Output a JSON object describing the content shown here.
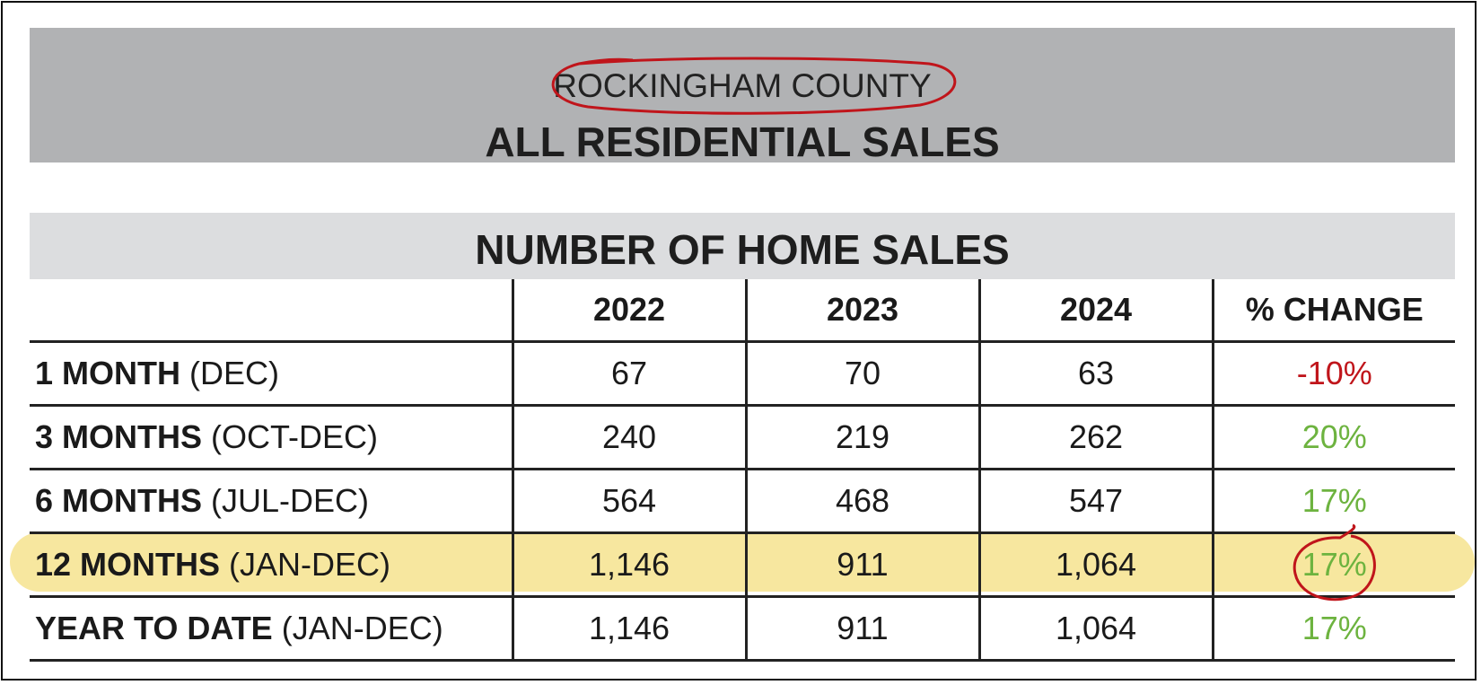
{
  "header": {
    "county": "ROCKINGHAM COUNTY",
    "subtitle": "ALL RESIDENTIAL SALES"
  },
  "table": {
    "title": "NUMBER OF HOME SALES",
    "columns": [
      "",
      "2022",
      "2023",
      "2024",
      "% CHANGE"
    ],
    "rows": [
      {
        "label": "1 MONTH",
        "period": " (DEC)",
        "v2022": "67",
        "v2023": "70",
        "v2024": "63",
        "change": "-10%"
      },
      {
        "label": "3 MONTHS",
        "period": " (OCT-DEC)",
        "v2022": "240",
        "v2023": "219",
        "v2024": "262",
        "change": "20%"
      },
      {
        "label": "6 MONTHS",
        "period": " (JUL-DEC)",
        "v2022": "564",
        "v2023": "468",
        "v2024": "547",
        "change": "17%"
      },
      {
        "label": "12 MONTHS",
        "period": " (JAN-DEC)",
        "v2022": "1,146",
        "v2023": "911",
        "v2024": "1,064",
        "change": "17%"
      },
      {
        "label": "YEAR TO DATE",
        "period": " (JAN-DEC)",
        "v2022": "1,146",
        "v2023": "911",
        "v2024": "1,064",
        "change": "17%"
      }
    ]
  },
  "colors": {
    "header_band": "#b1b2b4",
    "title_band": "#dcdddf",
    "highlight": "#f6e597",
    "negative": "#c0151b",
    "positive": "#6db33f",
    "annotation": "#c0151b"
  },
  "chart_data": {
    "type": "table",
    "title": "NUMBER OF HOME SALES",
    "columns": [
      "2022",
      "2023",
      "2024",
      "% CHANGE"
    ],
    "rows": [
      {
        "label": "1 MONTH (DEC)",
        "values": [
          67,
          70,
          63
        ],
        "change_pct": -10
      },
      {
        "label": "3 MONTHS (OCT-DEC)",
        "values": [
          240,
          219,
          262
        ],
        "change_pct": 20
      },
      {
        "label": "6 MONTHS (JUL-DEC)",
        "values": [
          564,
          468,
          547
        ],
        "change_pct": 17
      },
      {
        "label": "12 MONTHS (JAN-DEC)",
        "values": [
          1146,
          911,
          1064
        ],
        "change_pct": 17
      },
      {
        "label": "YEAR TO DATE (JAN-DEC)",
        "values": [
          1146,
          911,
          1064
        ],
        "change_pct": 17
      }
    ]
  }
}
